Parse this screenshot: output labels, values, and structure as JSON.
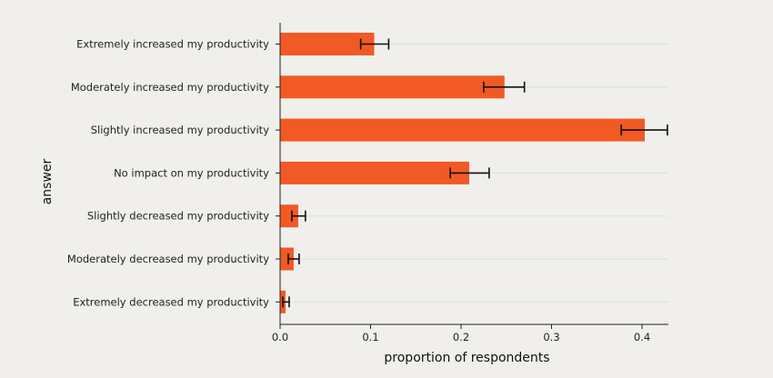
{
  "chart_data": {
    "type": "bar",
    "orientation": "horizontal",
    "categories": [
      "Extremely increased my productivity",
      "Moderately increased my productivity",
      "Slightly increased my productivity",
      "No impact on my productivity",
      "Slightly decreased my productivity",
      "Moderately decreased my productivity",
      "Extremely decreased my productivity"
    ],
    "values": [
      0.104,
      0.248,
      0.403,
      0.209,
      0.02,
      0.015,
      0.006
    ],
    "error_low": [
      0.089,
      0.225,
      0.377,
      0.188,
      0.013,
      0.009,
      0.003
    ],
    "error_high": [
      0.12,
      0.27,
      0.428,
      0.231,
      0.028,
      0.021,
      0.01
    ],
    "xlabel": "proportion of respondents",
    "ylabel": "answer",
    "xlim": [
      0,
      0.43
    ],
    "xticks": [
      0.0,
      0.1,
      0.2,
      0.3,
      0.4
    ],
    "xtick_labels": [
      "0.0",
      "0.1",
      "0.2",
      "0.3",
      "0.4"
    ],
    "grid": "horizontal",
    "colors": {
      "bar": "#f15a24",
      "error_bar": "#111111",
      "background": "#f0efec",
      "grid": "#dddddd",
      "axis": "#222222"
    }
  }
}
